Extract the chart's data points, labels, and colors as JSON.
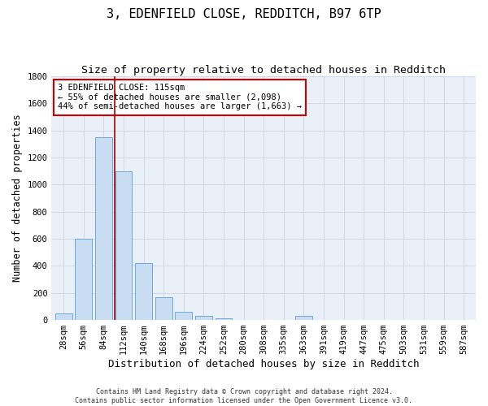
{
  "title_line1": "3, EDENFIELD CLOSE, REDDITCH, B97 6TP",
  "title_line2": "Size of property relative to detached houses in Redditch",
  "xlabel": "Distribution of detached houses by size in Redditch",
  "ylabel": "Number of detached properties",
  "categories": [
    "28sqm",
    "56sqm",
    "84sqm",
    "112sqm",
    "140sqm",
    "168sqm",
    "196sqm",
    "224sqm",
    "252sqm",
    "280sqm",
    "308sqm",
    "335sqm",
    "363sqm",
    "391sqm",
    "419sqm",
    "447sqm",
    "475sqm",
    "503sqm",
    "531sqm",
    "559sqm",
    "587sqm"
  ],
  "values": [
    50,
    600,
    1350,
    1100,
    420,
    170,
    60,
    30,
    10,
    0,
    0,
    0,
    30,
    0,
    0,
    0,
    0,
    0,
    0,
    0,
    0
  ],
  "bar_color": "#c9ddf2",
  "bar_edge_color": "#6fa8dc",
  "vline_x": 2.57,
  "vline_color": "#aa0000",
  "annotation_text": "3 EDENFIELD CLOSE: 115sqm\n← 55% of detached houses are smaller (2,098)\n44% of semi-detached houses are larger (1,663) →",
  "annotation_box_color": "#cc0000",
  "annotation_fill": "#ffffff",
  "ylim": [
    0,
    1800
  ],
  "yticks": [
    0,
    200,
    400,
    600,
    800,
    1000,
    1200,
    1400,
    1600,
    1800
  ],
  "grid_color": "#d0d8e8",
  "background_color": "#eaf0f8",
  "footer_text": "Contains HM Land Registry data © Crown copyright and database right 2024.\nContains public sector information licensed under the Open Government Licence v3.0.",
  "title_fontsize": 11,
  "subtitle_fontsize": 9.5,
  "xlabel_fontsize": 9,
  "ylabel_fontsize": 8.5,
  "tick_fontsize": 7.5,
  "annot_fontsize": 7.5
}
